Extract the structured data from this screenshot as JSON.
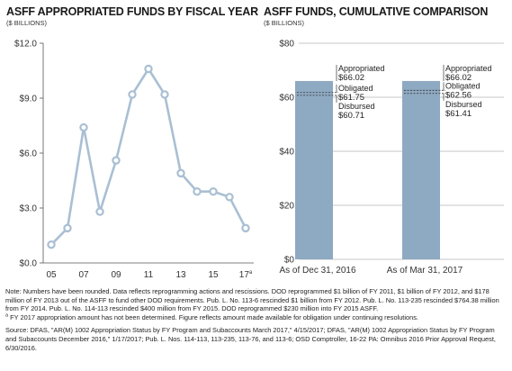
{
  "left_title": "ASFF APPROPRIATED FUNDS BY FISCAL YEAR",
  "left_subtitle": "($ BILLIONS)",
  "right_title": "ASFF FUNDS, CUMULATIVE COMPARISON",
  "right_subtitle": "($ BILLIONS)",
  "chart_data": [
    {
      "type": "line",
      "title": "ASFF APPROPRIATED FUNDS BY FISCAL YEAR",
      "ylabel": "($ BILLIONS)",
      "x": [
        2005,
        2006,
        2007,
        2008,
        2009,
        2010,
        2011,
        2012,
        2013,
        2014,
        2015,
        2016,
        2017
      ],
      "values": [
        1.0,
        1.9,
        7.4,
        2.8,
        5.6,
        9.2,
        10.6,
        9.2,
        4.9,
        3.9,
        3.9,
        3.6,
        1.9
      ],
      "x_tick_labels": [
        "05",
        "07",
        "09",
        "11",
        "13",
        "15",
        "17"
      ],
      "x_tick_positions": [
        2005,
        2007,
        2009,
        2011,
        2013,
        2015,
        2017
      ],
      "last_tick_marker": "a",
      "y_tick_labels": [
        "$0.0",
        "$3.0",
        "$6.0",
        "$9.0",
        "$12.0"
      ],
      "y_tick_values": [
        0,
        3,
        6,
        9,
        12
      ],
      "ylim": [
        0,
        12
      ],
      "color": "#a9bfd3",
      "grid": false
    },
    {
      "type": "bar",
      "title": "ASFF FUNDS, CUMULATIVE COMPARISON",
      "ylabel": "($ BILLIONS)",
      "categories": [
        "As of Dec 31, 2016",
        "As of Mar 31, 2017"
      ],
      "series": [
        {
          "name": "Appropriated",
          "values": [
            66.02,
            66.02
          ]
        },
        {
          "name": "Obligated",
          "values": [
            61.75,
            62.56
          ]
        },
        {
          "name": "Disbursed",
          "values": [
            60.71,
            61.41
          ]
        }
      ],
      "annotations": [
        [
          {
            "label": "Appropriated",
            "value": "$66.02"
          },
          {
            "label": "Obligated",
            "value": "$61.75"
          },
          {
            "label": "Disbursed",
            "value": "$60.71"
          }
        ],
        [
          {
            "label": "Appropriated",
            "value": "$66.02"
          },
          {
            "label": "Obligated",
            "value": "$62.56"
          },
          {
            "label": "Disbursed",
            "value": "$61.41"
          }
        ]
      ],
      "y_tick_labels": [
        "$0",
        "$20",
        "$40",
        "$60",
        "$80"
      ],
      "y_tick_values": [
        0,
        20,
        40,
        60,
        80
      ],
      "ylim": [
        0,
        80
      ],
      "bar_color": "#8ea9c2",
      "grid": true
    }
  ],
  "notes": {
    "note": "Note: Numbers have been rounded. Data reflects reprogramming actions and rescissions. DOD reprogrammed $1 billion of FY 2011, $1 billion of FY 2012, and $178 million of FY 2013 out of the ASFF to fund other DOD requirements. Pub. L. No. 113-6 rescinded $1 billion from FY 2012. Pub. L. No. 113-235 rescinded $764.38 million from FY 2014. Pub. L. No. 114-113 rescinded $400 million from FY 2015. DOD reprogrammed $230 million into FY 2015 ASFF.",
    "footnote_marker": "a",
    "footnote": "FY 2017 appropriation amount has not been determined. Figure reflects amount made available for obligation under continuing resolutions.",
    "source": "Source: DFAS, \"AR(M) 1002 Appropriation Status by FY Program and Subaccounts March 2017,\" 4/15/2017; DFAS, \"AR(M) 1002 Appropriation Status by FY Program and Subaccounts December 2016,\" 1/17/2017; Pub. L. Nos. 114-113, 113-235, 113-76, and 113-6; OSD Comptroller, 16-22 PA: Omnibus 2016 Prior Approval Request, 6/30/2016."
  }
}
